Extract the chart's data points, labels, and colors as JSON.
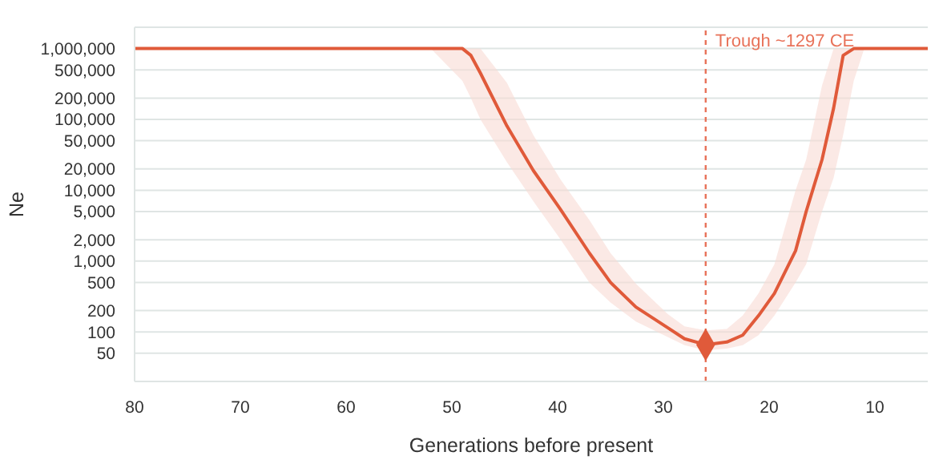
{
  "chart_data": {
    "type": "line",
    "xlabel": "Generations before present",
    "ylabel": "Ne",
    "log": "y",
    "grid": "y",
    "legend": false,
    "xlim": [
      80,
      5
    ],
    "xticks": [
      80,
      70,
      60,
      50,
      40,
      30,
      20,
      10
    ],
    "ylim": [
      20,
      2000000
    ],
    "yticks": [
      {
        "value": 50,
        "label": "50"
      },
      {
        "value": 100,
        "label": "100"
      },
      {
        "value": 200,
        "label": "200"
      },
      {
        "value": 500,
        "label": "500"
      },
      {
        "value": 1000,
        "label": "1,000"
      },
      {
        "value": 2000,
        "label": "2,000"
      },
      {
        "value": 5000,
        "label": "5,000"
      },
      {
        "value": 10000,
        "label": "10,000"
      },
      {
        "value": 20000,
        "label": "20,000"
      },
      {
        "value": 50000,
        "label": "50,000"
      },
      {
        "value": 100000,
        "label": "100,000"
      },
      {
        "value": 200000,
        "label": "200,000"
      },
      {
        "value": 500000,
        "label": "500,000"
      },
      {
        "value": 1000000,
        "label": "1,000,000"
      }
    ],
    "series": [
      {
        "color": "#e05a3a",
        "marker": "none",
        "x": [
          80,
          52,
          49,
          48.2,
          47.3,
          44.8,
          42.3,
          39.7,
          37,
          35,
          32.6,
          29.6,
          28,
          26,
          24,
          22.5,
          21,
          19.5,
          17.5,
          16.5,
          15,
          13.9,
          13,
          12,
          11,
          5
        ],
        "values": [
          1000000,
          1000000,
          1000000,
          800000,
          450000,
          81000,
          19000,
          5300,
          1300,
          500,
          225,
          115,
          80,
          66,
          72,
          90,
          170,
          350,
          1400,
          5000,
          27000,
          145000,
          800000,
          1000000,
          1000000,
          1000000
        ],
        "upper": [
          1000000,
          1000000,
          1000000,
          1000000,
          1000000,
          330000,
          60000,
          14000,
          3800,
          1300,
          480,
          180,
          120,
          105,
          110,
          170,
          350,
          900,
          10000,
          27000,
          300000,
          1000000,
          1000000,
          1000000,
          1000000,
          1000000
        ],
        "lower": [
          1000000,
          1000000,
          350000,
          200000,
          100000,
          25000,
          7000,
          2000,
          500,
          260,
          140,
          85,
          65,
          55,
          58,
          65,
          90,
          170,
          500,
          900,
          5000,
          15000,
          60000,
          350000,
          1000000,
          1000000
        ]
      },
      {
        "type": "scatter",
        "color": "#e05a3a",
        "marker": "diamond",
        "x": [
          26
        ],
        "values": [
          66
        ]
      }
    ],
    "ref_lines": [
      {
        "axis": "x",
        "value": 26,
        "label": "Trough ~1297 CE",
        "color": "#e8735a",
        "line_style": "dashed"
      }
    ]
  }
}
